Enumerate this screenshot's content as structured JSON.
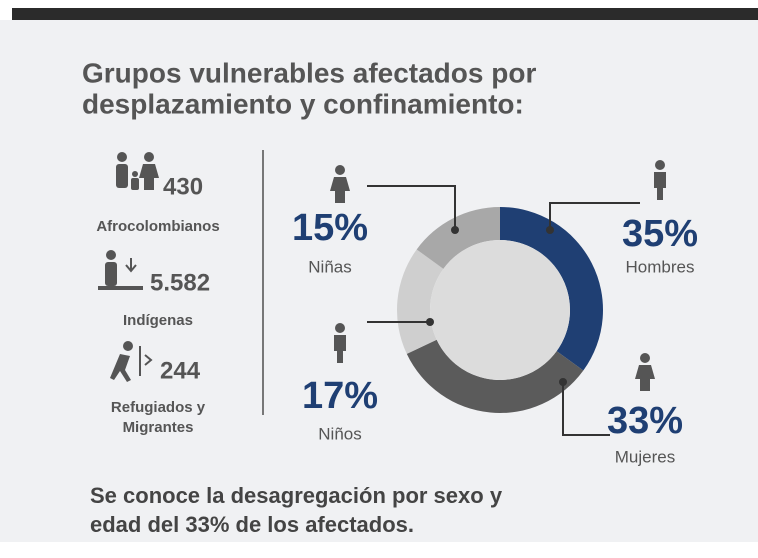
{
  "header": {
    "title_lines": [
      "Grupos vulnerables afectados por",
      "desplazamiento y confinamiento:"
    ]
  },
  "stats": [
    {
      "number": "430",
      "label_lines": [
        "Afrocolombianos"
      ]
    },
    {
      "number": "5.582",
      "label_lines": [
        "Indígenas"
      ]
    },
    {
      "number": "244",
      "label_lines": [
        "Refugiados y",
        "Migrantes"
      ]
    }
  ],
  "chart_data": {
    "type": "donut",
    "categories": [
      "Hombres",
      "Mujeres",
      "Niños",
      "Niñas"
    ],
    "values": [
      35,
      33,
      17,
      15
    ],
    "value_labels": [
      "35%",
      "33%",
      "17%",
      "15%"
    ],
    "colors": [
      "#1f3f73",
      "#5b5b5b",
      "#cfcfcf",
      "#a8a8a8"
    ]
  },
  "footer": {
    "lines": [
      "Se conoce la desagregación por sexo y",
      "edad del 33% de los afectados."
    ]
  }
}
